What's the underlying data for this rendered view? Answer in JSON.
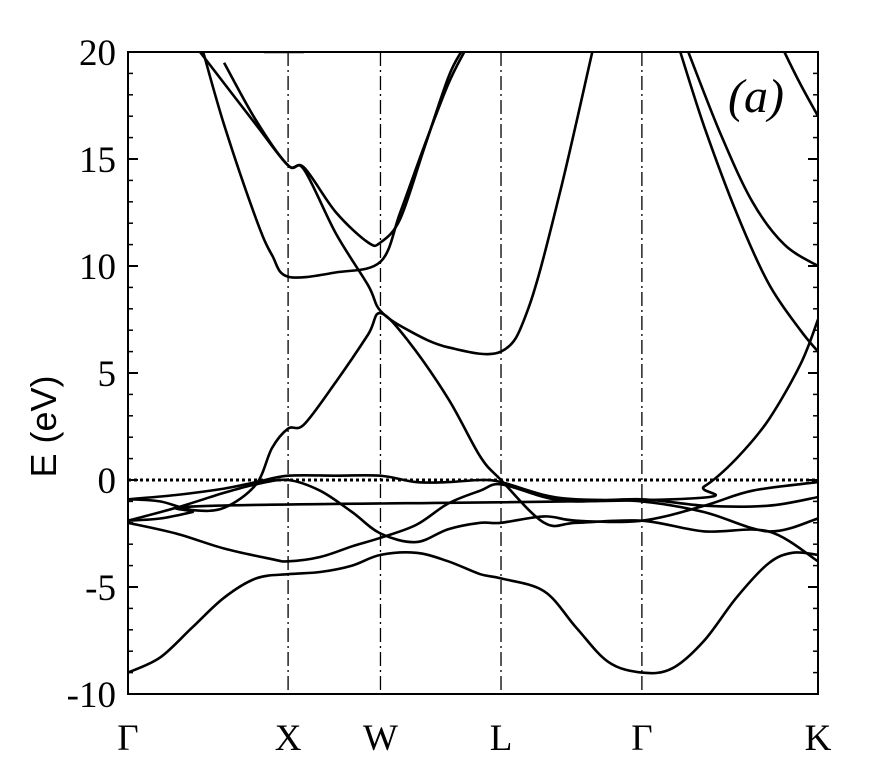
{
  "chart_data": {
    "type": "line",
    "title": "",
    "panel_label": "(a)",
    "ylabel": "E (eV)",
    "xlabel": "",
    "ylim": [
      -10,
      20
    ],
    "yticks": [
      -10,
      -5,
      0,
      5,
      10,
      15,
      20
    ],
    "ytick_labels": [
      "-10",
      "-5",
      "0",
      "5",
      "10",
      "15",
      "20"
    ],
    "kpoints": [
      {
        "label": "Γ",
        "pos": 0.0
      },
      {
        "label": "X",
        "pos": 1.0
      },
      {
        "label": "W",
        "pos": 1.577
      },
      {
        "label": "L",
        "pos": 2.33
      },
      {
        "label": "Γ",
        "pos": 3.21
      },
      {
        "label": "K",
        "pos": 4.31
      }
    ],
    "xlim": [
      0,
      4.31
    ],
    "fermi_level": 0,
    "grid": false,
    "legend": "none",
    "colors": {
      "lines": "#000000",
      "fermi": "#000000"
    },
    "series": [
      {
        "values": [
          [
            0,
            -9.0
          ],
          [
            0.2,
            -8.3
          ],
          [
            0.4,
            -6.9
          ],
          [
            0.6,
            -5.5
          ],
          [
            0.8,
            -4.6
          ],
          [
            1.0,
            -4.4
          ],
          [
            1.2,
            -4.3
          ],
          [
            1.4,
            -4.0
          ],
          [
            1.577,
            -3.5
          ],
          [
            1.8,
            -3.4
          ],
          [
            2.0,
            -3.8
          ],
          [
            2.2,
            -4.4
          ],
          [
            2.33,
            -4.6
          ],
          [
            2.6,
            -5.2
          ],
          [
            2.8,
            -6.9
          ],
          [
            3.0,
            -8.5
          ],
          [
            3.21,
            -9.0
          ],
          [
            3.4,
            -8.8
          ],
          [
            3.6,
            -7.5
          ],
          [
            3.8,
            -5.5
          ],
          [
            4.0,
            -3.9
          ],
          [
            4.15,
            -3.4
          ],
          [
            4.31,
            -3.5
          ]
        ]
      },
      {
        "values": [
          [
            0,
            -2.0
          ],
          [
            0.3,
            -2.5
          ],
          [
            0.6,
            -3.2
          ],
          [
            0.9,
            -3.7
          ],
          [
            1.0,
            -3.8
          ],
          [
            1.2,
            -3.6
          ],
          [
            1.4,
            -3.1
          ],
          [
            1.577,
            -2.7
          ],
          [
            1.8,
            -2.1
          ],
          [
            2.0,
            -1.1
          ],
          [
            2.2,
            -0.5
          ],
          [
            2.33,
            -0.2
          ],
          [
            2.6,
            -0.8
          ],
          [
            2.8,
            -1.0
          ],
          [
            3.21,
            -0.9
          ],
          [
            3.6,
            -1.2
          ],
          [
            4.0,
            -1.2
          ],
          [
            4.31,
            -0.8
          ]
        ]
      },
      {
        "values": [
          [
            0,
            -1.9
          ],
          [
            0.3,
            -1.3
          ],
          [
            0.6,
            -0.6
          ],
          [
            0.8,
            -0.2
          ],
          [
            1.0,
            0.0
          ],
          [
            1.2,
            -0.5
          ],
          [
            1.4,
            -1.5
          ],
          [
            1.577,
            -2.5
          ],
          [
            1.8,
            -2.9
          ],
          [
            2.0,
            -2.3
          ],
          [
            2.2,
            -2.0
          ],
          [
            2.33,
            -2.0
          ],
          [
            2.6,
            -1.7
          ],
          [
            2.8,
            -1.9
          ],
          [
            3.21,
            -1.9
          ],
          [
            3.6,
            -1.2
          ],
          [
            3.9,
            -0.5
          ],
          [
            4.31,
            -0.1
          ]
        ]
      },
      {
        "values": [
          [
            0,
            -0.9
          ],
          [
            0.3,
            -0.7
          ],
          [
            0.6,
            -0.4
          ],
          [
            0.8,
            -0.1
          ],
          [
            1.0,
            0.2
          ],
          [
            1.3,
            0.2
          ],
          [
            1.577,
            0.2
          ],
          [
            1.8,
            -0.1
          ],
          [
            2.0,
            -0.1
          ],
          [
            2.2,
            -0.0
          ],
          [
            2.33,
            -0.1
          ],
          [
            2.6,
            -0.7
          ],
          [
            2.8,
            -0.9
          ],
          [
            3.21,
            -1.0
          ],
          [
            3.6,
            -1.5
          ],
          [
            4.0,
            -2.4
          ],
          [
            4.31,
            -1.8
          ]
        ]
      },
      {
        "values": [
          [
            0,
            -0.9
          ],
          [
            0.2,
            -1.0
          ],
          [
            0.4,
            -1.4
          ],
          [
            0.6,
            -1.3
          ],
          [
            0.8,
            -0.2
          ],
          [
            0.9,
            1.5
          ],
          [
            1.0,
            2.4
          ],
          [
            1.1,
            2.6
          ],
          [
            1.3,
            4.6
          ],
          [
            1.5,
            6.8
          ],
          [
            1.577,
            7.8
          ],
          [
            1.75,
            6.5
          ],
          [
            2.0,
            3.8
          ],
          [
            2.2,
            1.1
          ],
          [
            2.33,
            0.0
          ],
          [
            2.6,
            -2.0
          ],
          [
            2.8,
            -2.0
          ],
          [
            3.21,
            -1.9
          ],
          [
            3.6,
            -2.4
          ],
          [
            4.0,
            -2.4
          ],
          [
            4.31,
            -3.8
          ]
        ]
      },
      {
        "values": [
          [
            0,
            -1.9
          ],
          [
            0.2,
            -1.8
          ],
          [
            0.4,
            -1.5
          ],
          [
            0.55,
            -1.2
          ],
          [
            3.4,
            -0.9
          ],
          [
            3.6,
            -0.3
          ],
          [
            3.8,
            1.0
          ],
          [
            4.0,
            2.8
          ],
          [
            4.2,
            5.4
          ],
          [
            4.31,
            7.5
          ]
        ]
      },
      {
        "values": [
          [
            0.47,
            20.0
          ],
          [
            0.6,
            16.6
          ],
          [
            0.8,
            12.2
          ],
          [
            0.9,
            10.5
          ],
          [
            1.0,
            9.5
          ],
          [
            1.3,
            9.7
          ],
          [
            1.577,
            10.2
          ],
          [
            1.7,
            12.5
          ],
          [
            1.85,
            15.6
          ],
          [
            2.0,
            18.5
          ],
          [
            2.1,
            20.0
          ]
        ]
      },
      {
        "values": [
          [
            0.6,
            19.5
          ],
          [
            0.8,
            16.8
          ],
          [
            1.0,
            14.7
          ],
          [
            1.1,
            14.6
          ],
          [
            1.3,
            12.5
          ],
          [
            1.5,
            11.1
          ],
          [
            1.577,
            11.1
          ],
          [
            1.7,
            12.2
          ],
          [
            1.85,
            15.5
          ],
          [
            2.0,
            18.8
          ],
          [
            2.08,
            20.0
          ]
        ]
      },
      {
        "values": [
          [
            0.45,
            20.0
          ],
          [
            0.8,
            16.6
          ],
          [
            1.0,
            14.7
          ],
          [
            1.1,
            14.5
          ],
          [
            1.3,
            11.5
          ],
          [
            1.5,
            9.1
          ],
          [
            1.577,
            7.9
          ],
          [
            1.75,
            7.0
          ],
          [
            2.0,
            6.2
          ],
          [
            2.33,
            6.0
          ],
          [
            2.5,
            8.0
          ],
          [
            2.7,
            13.5
          ],
          [
            2.9,
            20.0
          ]
        ]
      },
      {
        "values": [
          [
            3.45,
            20.0
          ],
          [
            3.6,
            16.5
          ],
          [
            3.8,
            12.5
          ],
          [
            4.0,
            9.2
          ],
          [
            4.2,
            7.0
          ],
          [
            4.31,
            6.0
          ]
        ]
      },
      {
        "values": [
          [
            3.5,
            20.0
          ],
          [
            3.7,
            16.2
          ],
          [
            3.9,
            13.0
          ],
          [
            4.1,
            11.0
          ],
          [
            4.31,
            10.0
          ]
        ]
      },
      {
        "values": [
          [
            4.1,
            20.0
          ],
          [
            4.2,
            18.5
          ],
          [
            4.31,
            17.0
          ]
        ]
      },
      {
        "values": [
          [
            0.85,
            20.0
          ],
          [
            1.0,
            20.0
          ],
          [
            1.1,
            20.0
          ]
        ]
      }
    ]
  }
}
